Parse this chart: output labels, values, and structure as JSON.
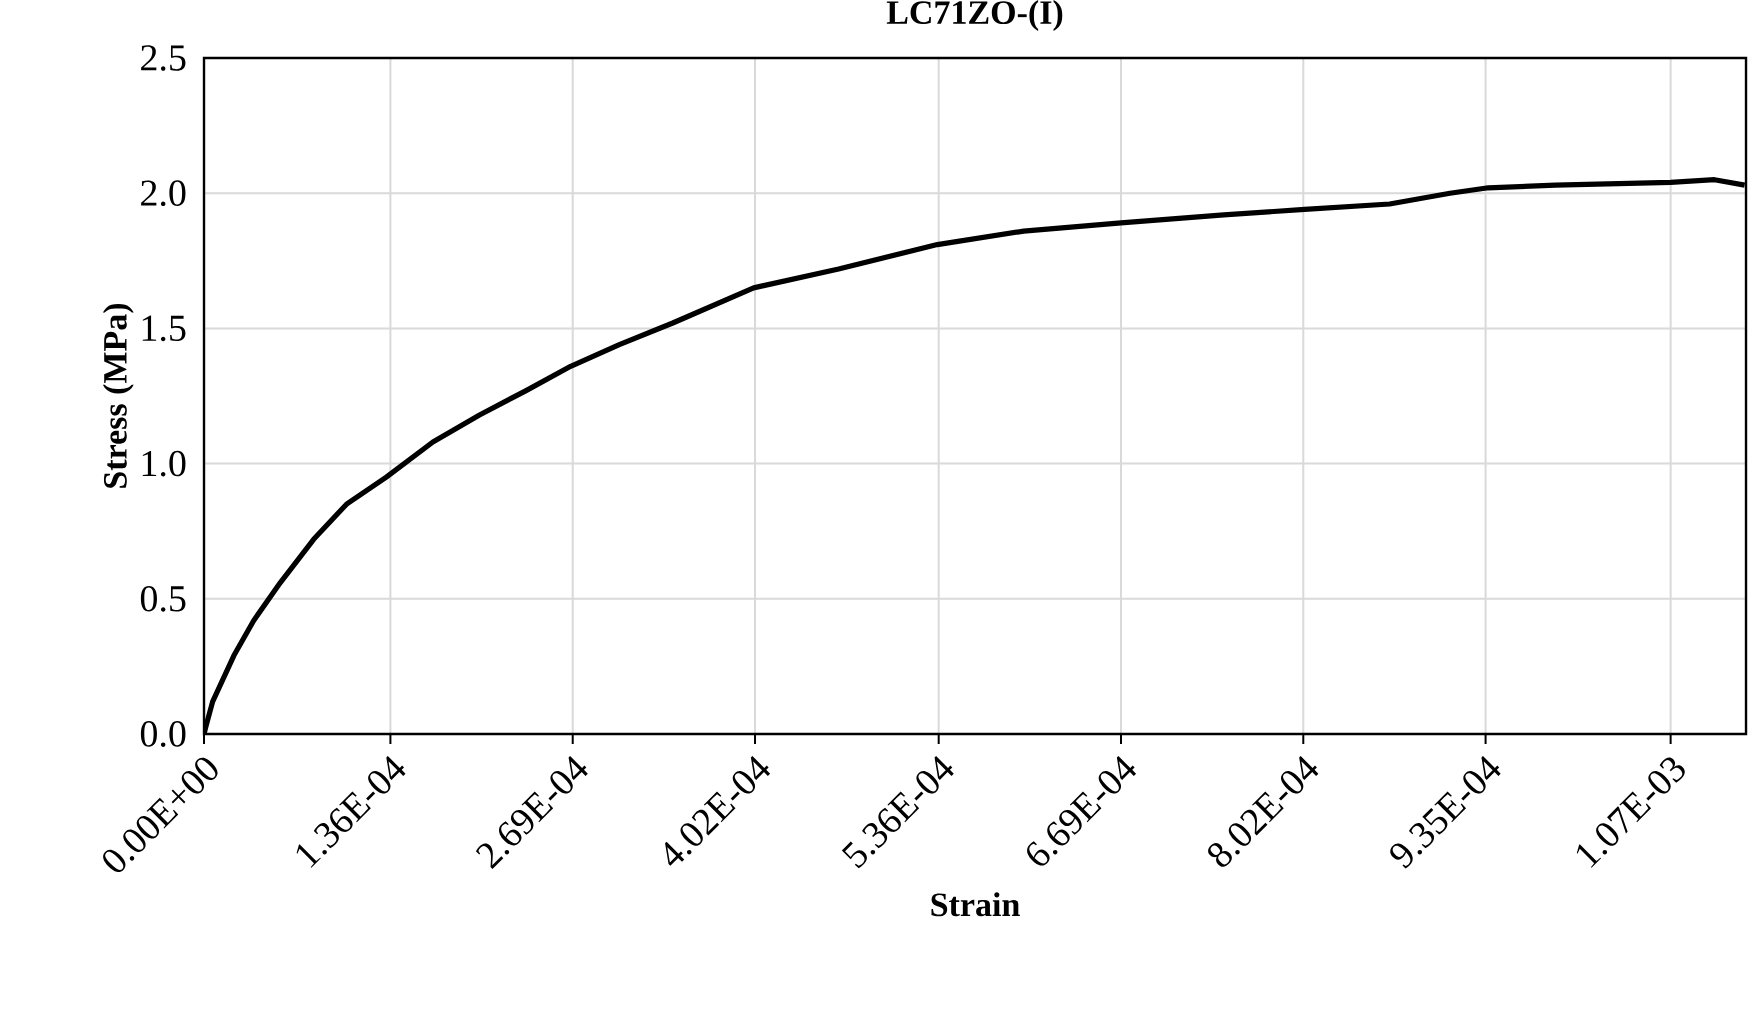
{
  "chart_data": {
    "type": "line",
    "title": "LC71ZO-(I)",
    "xlabel": "Strain",
    "ylabel": "Stress (MPa)",
    "xlim": [
      0,
      0.001125
    ],
    "ylim": [
      0,
      2.5
    ],
    "xticks": [
      {
        "value": 0,
        "label": "0.00E+00"
      },
      {
        "value": 0.000136,
        "label": "1.36E-04"
      },
      {
        "value": 0.000269,
        "label": "2.69E-04"
      },
      {
        "value": 0.000402,
        "label": "4.02E-04"
      },
      {
        "value": 0.000536,
        "label": "5.36E-04"
      },
      {
        "value": 0.000669,
        "label": "6.69E-04"
      },
      {
        "value": 0.000802,
        "label": "8.02E-04"
      },
      {
        "value": 0.000935,
        "label": "9.35E-04"
      },
      {
        "value": 0.00107,
        "label": "1.07E-03"
      }
    ],
    "yticks": [
      {
        "value": 0,
        "label": "0.0"
      },
      {
        "value": 0.5,
        "label": "0.5"
      },
      {
        "value": 1,
        "label": "1.0"
      },
      {
        "value": 1.5,
        "label": "1.5"
      },
      {
        "value": 2,
        "label": "2.0"
      },
      {
        "value": 2.5,
        "label": "2.5"
      }
    ],
    "grid": true,
    "marker": "none",
    "line_style": "solid",
    "series": [
      {
        "color": "#000000",
        "x": [
          0,
          1.5e-06,
          6.3e-06,
          2.18e-05,
          3.63e-05,
          5.57e-05,
          8e-05,
          0.000104,
          0.000133,
          0.000167,
          0.000201,
          0.000235,
          0.0002675,
          0.000303,
          0.000342,
          0.000401,
          0.000463,
          0.000535,
          0.000598,
          0.000669,
          0.000744,
          0.000803,
          0.000865,
          0.000909,
          0.000937,
          0.000986,
          0.00107,
          0.001102,
          0.001124
        ],
        "values": [
          0,
          0.03,
          0.12,
          0.29,
          0.42,
          0.56,
          0.72,
          0.85,
          0.95,
          1.08,
          1.18,
          1.27,
          1.36,
          1.44,
          1.52,
          1.65,
          1.72,
          1.81,
          1.86,
          1.89,
          1.92,
          1.94,
          1.96,
          2.0,
          2.02,
          2.03,
          2.04,
          2.05,
          2.03
        ]
      }
    ]
  }
}
